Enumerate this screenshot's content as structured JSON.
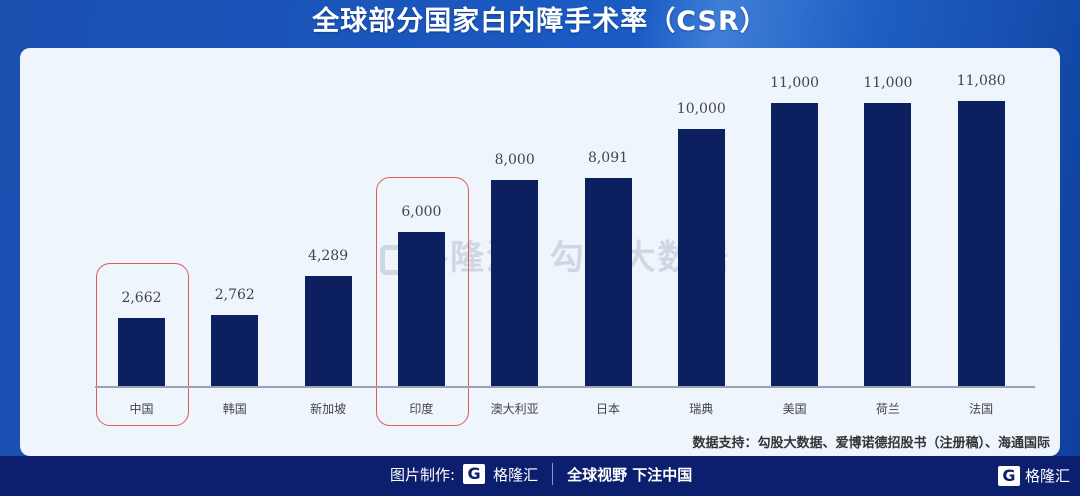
{
  "title": "全球部分国家白内障手术率（CSR）",
  "chart_data": {
    "type": "bar",
    "title": "全球部分国家白内障手术率（CSR）",
    "categories": [
      "中国",
      "韩国",
      "新加坡",
      "印度",
      "澳大利亚",
      "日本",
      "瑞典",
      "美国",
      "荷兰",
      "法国"
    ],
    "values": [
      2662,
      2762,
      4289,
      6000,
      8000,
      8091,
      10000,
      11000,
      11000,
      11080
    ],
    "value_labels": [
      "2,662",
      "2,762",
      "4,289",
      "6,000",
      "8,000",
      "8,091",
      "10,000",
      "11,000",
      "11,000",
      "11,080"
    ],
    "highlighted": [
      "中国",
      "印度"
    ],
    "xlabel": "",
    "ylabel": "",
    "grid": false,
    "bar_color": "#0c1f5e",
    "highlight_color": "#e05a5a"
  },
  "source": "数据支持：勾股大数据、爱博诺德招股书（注册稿）、海通国际",
  "watermark": {
    "brand": "格隆汇",
    "text": "勾股大数据"
  },
  "footer": {
    "made_by_label": "图片制作:",
    "logo_letter": "G",
    "brand": "格隆汇",
    "slogan": "全球视野 下注中国",
    "right_brand": "格隆汇"
  },
  "colors": {
    "card_bg": "#eef5fd",
    "header_bg": "#1a5bc4",
    "footer_bg": "#0c1e6e"
  }
}
